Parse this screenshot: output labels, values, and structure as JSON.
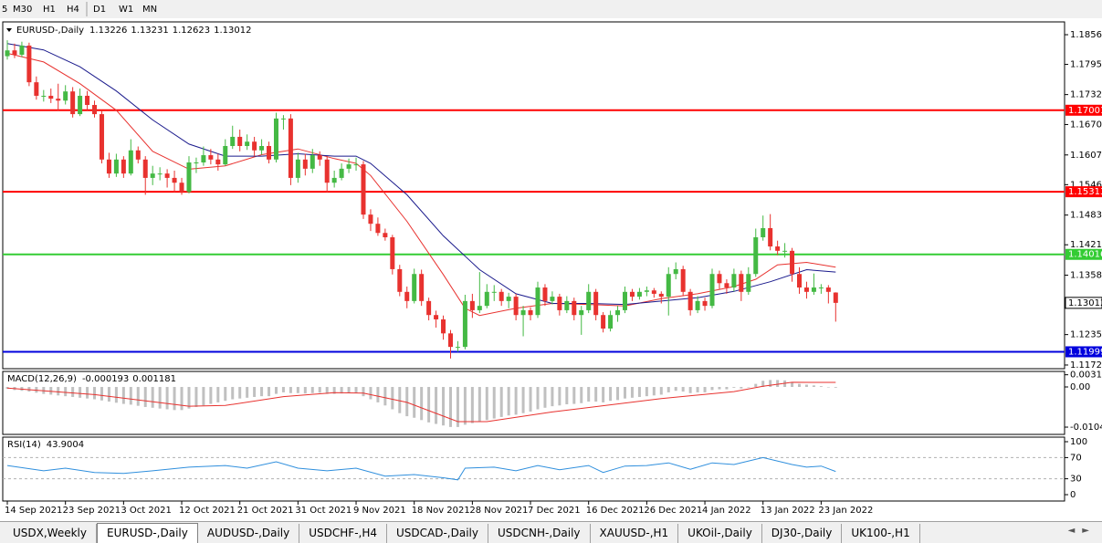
{
  "toolbar": {
    "timeframes": [
      "5",
      "M30",
      "H1",
      "H4",
      "D1",
      "W1",
      "MN"
    ]
  },
  "chart_data": [
    {
      "type": "candlestick",
      "symbol": "EURUSD-,Daily",
      "up_color": "#44b944",
      "down_color": "#e8322f",
      "xlim": [
        -0.63,
        145.5
      ],
      "ylim": [
        1.11649,
        1.1883
      ],
      "yticks": [
        1.18565,
        1.1795,
        1.17325,
        1.16705,
        1.16075,
        1.1546,
        1.1483,
        1.14215,
        1.13585,
        1.12355,
        1.11725
      ],
      "xticks": [
        {
          "value": 0,
          "label": "14 Sep 2021"
        },
        {
          "value": 8,
          "label": "23 Sep 2021"
        },
        {
          "value": 16,
          "label": "3 Oct 2021"
        },
        {
          "value": 24,
          "label": "12 Oct 2021"
        },
        {
          "value": 32,
          "label": "21 Oct 2021"
        },
        {
          "value": 40,
          "label": "31 Oct 2021"
        },
        {
          "value": 48,
          "label": "9 Nov 2021"
        },
        {
          "value": 56,
          "label": "18 Nov 2021"
        },
        {
          "value": 64,
          "label": "28 Nov 2021"
        },
        {
          "value": 72,
          "label": "7 Dec 2021"
        },
        {
          "value": 80,
          "label": "16 Dec 2021"
        },
        {
          "value": 88,
          "label": "26 Dec 2021"
        },
        {
          "value": 96,
          "label": "4 Jan 2022"
        },
        {
          "value": 104,
          "label": "13 Jan 2022"
        },
        {
          "value": 112,
          "label": "23 Jan 2022"
        }
      ],
      "levels": [
        {
          "value": 1.17001,
          "color": "#ff0000"
        },
        {
          "value": 1.15313,
          "color": "#ff0000"
        },
        {
          "value": 1.14016,
          "color": "#33cc33"
        },
        {
          "value": 1.11999,
          "color": "#0000dd"
        }
      ],
      "candles": [
        [
          1.1812,
          1.1845,
          1.1805,
          1.1824
        ],
        [
          1.1824,
          1.1838,
          1.1808,
          1.1815
        ],
        [
          1.1815,
          1.1842,
          1.181,
          1.1834
        ],
        [
          1.1834,
          1.184,
          1.175,
          1.1758
        ],
        [
          1.1758,
          1.177,
          1.1722,
          1.173
        ],
        [
          1.173,
          1.1742,
          1.1718,
          1.173
        ],
        [
          1.173,
          1.1745,
          1.1715,
          1.1724
        ],
        [
          1.1724,
          1.1755,
          1.17,
          1.172
        ],
        [
          1.172,
          1.1752,
          1.1712,
          1.1739
        ],
        [
          1.1739,
          1.1748,
          1.1685,
          1.1692
        ],
        [
          1.1692,
          1.1745,
          1.1688,
          1.173
        ],
        [
          1.173,
          1.174,
          1.17,
          1.1711
        ],
        [
          1.1711,
          1.172,
          1.1685,
          1.1692
        ],
        [
          1.1692,
          1.17,
          1.159,
          1.1598
        ],
        [
          1.1598,
          1.1612,
          1.156,
          1.1569
        ],
        [
          1.1569,
          1.161,
          1.1562,
          1.1598
        ],
        [
          1.1598,
          1.1605,
          1.156,
          1.1569
        ],
        [
          1.1569,
          1.164,
          1.1565,
          1.1617
        ],
        [
          1.1617,
          1.1625,
          1.159,
          1.1598
        ],
        [
          1.1598,
          1.1605,
          1.1525,
          1.156
        ],
        [
          1.156,
          1.1585,
          1.1545,
          1.1569
        ],
        [
          1.1569,
          1.1582,
          1.1555,
          1.1569
        ],
        [
          1.1569,
          1.1578,
          1.154,
          1.156
        ],
        [
          1.156,
          1.1575,
          1.153,
          1.155
        ],
        [
          1.155,
          1.156,
          1.1525,
          1.1531
        ],
        [
          1.1531,
          1.1605,
          1.1528,
          1.1592
        ],
        [
          1.1592,
          1.1602,
          1.157,
          1.1592
        ],
        [
          1.1592,
          1.1625,
          1.1585,
          1.1607
        ],
        [
          1.1607,
          1.162,
          1.1588,
          1.1598
        ],
        [
          1.1598,
          1.161,
          1.1575,
          1.1588
        ],
        [
          1.1588,
          1.164,
          1.1585,
          1.1626
        ],
        [
          1.1626,
          1.1668,
          1.162,
          1.1645
        ],
        [
          1.1645,
          1.166,
          1.1615,
          1.1626
        ],
        [
          1.1626,
          1.165,
          1.1618,
          1.1635
        ],
        [
          1.1635,
          1.1645,
          1.1605,
          1.1617
        ],
        [
          1.1617,
          1.164,
          1.1608,
          1.1626
        ],
        [
          1.1626,
          1.1635,
          1.159,
          1.1598
        ],
        [
          1.1598,
          1.1695,
          1.1592,
          1.1683
        ],
        [
          1.1683,
          1.169,
          1.166,
          1.1683
        ],
        [
          1.1683,
          1.1692,
          1.1545,
          1.156
        ],
        [
          1.156,
          1.1612,
          1.155,
          1.1598
        ],
        [
          1.1598,
          1.161,
          1.1565,
          1.1579
        ],
        [
          1.1579,
          1.162,
          1.157,
          1.1607
        ],
        [
          1.1607,
          1.1615,
          1.1585,
          1.1598
        ],
        [
          1.1598,
          1.1605,
          1.153,
          1.155
        ],
        [
          1.155,
          1.1575,
          1.154,
          1.156
        ],
        [
          1.156,
          1.159,
          1.1555,
          1.1579
        ],
        [
          1.1579,
          1.16,
          1.157,
          1.1588
        ],
        [
          1.1588,
          1.1602,
          1.1575,
          1.1588
        ],
        [
          1.1588,
          1.1595,
          1.1475,
          1.1484
        ],
        [
          1.1484,
          1.1495,
          1.145,
          1.1465
        ],
        [
          1.1465,
          1.1478,
          1.144,
          1.1446
        ],
        [
          1.1446,
          1.1455,
          1.143,
          1.1437
        ],
        [
          1.1437,
          1.1442,
          1.136,
          1.1371
        ],
        [
          1.1371,
          1.138,
          1.1315,
          1.1324
        ],
        [
          1.1324,
          1.1335,
          1.129,
          1.1305
        ],
        [
          1.1305,
          1.1372,
          1.13,
          1.1361
        ],
        [
          1.1361,
          1.137,
          1.1295,
          1.1305
        ],
        [
          1.1305,
          1.1312,
          1.1265,
          1.1276
        ],
        [
          1.1276,
          1.1285,
          1.125,
          1.1267
        ],
        [
          1.1267,
          1.1275,
          1.1225,
          1.1238
        ],
        [
          1.1238,
          1.1245,
          1.1186,
          1.121
        ],
        [
          1.121,
          1.1222,
          1.12,
          1.121
        ],
        [
          1.121,
          1.1318,
          1.1205,
          1.1305
        ],
        [
          1.1305,
          1.132,
          1.127,
          1.1286
        ],
        [
          1.1286,
          1.1365,
          1.128,
          1.1295
        ],
        [
          1.1295,
          1.134,
          1.129,
          1.1324
        ],
        [
          1.1324,
          1.1338,
          1.1305,
          1.1324
        ],
        [
          1.1324,
          1.133,
          1.1295,
          1.1305
        ],
        [
          1.1305,
          1.1322,
          1.129,
          1.1314
        ],
        [
          1.1314,
          1.132,
          1.1265,
          1.1276
        ],
        [
          1.1276,
          1.1295,
          1.1232,
          1.1286
        ],
        [
          1.1286,
          1.1292,
          1.1265,
          1.1276
        ],
        [
          1.1276,
          1.1345,
          1.127,
          1.1333
        ],
        [
          1.1333,
          1.134,
          1.1295,
          1.1305
        ],
        [
          1.1305,
          1.1325,
          1.1298,
          1.1314
        ],
        [
          1.1314,
          1.132,
          1.1275,
          1.1286
        ],
        [
          1.1286,
          1.1315,
          1.128,
          1.1305
        ],
        [
          1.1305,
          1.1312,
          1.1265,
          1.1276
        ],
        [
          1.1276,
          1.1295,
          1.1235,
          1.1286
        ],
        [
          1.1286,
          1.134,
          1.128,
          1.1324
        ],
        [
          1.1324,
          1.133,
          1.1265,
          1.1276
        ],
        [
          1.1276,
          1.1282,
          1.124,
          1.1248
        ],
        [
          1.1248,
          1.1285,
          1.1242,
          1.1276
        ],
        [
          1.1276,
          1.1295,
          1.1262,
          1.1286
        ],
        [
          1.1286,
          1.1335,
          1.128,
          1.1324
        ],
        [
          1.1324,
          1.133,
          1.1305,
          1.1314
        ],
        [
          1.1314,
          1.1332,
          1.1308,
          1.1324
        ],
        [
          1.1324,
          1.1335,
          1.1315,
          1.1327
        ],
        [
          1.1327,
          1.1332,
          1.1312,
          1.132
        ],
        [
          1.132,
          1.1325,
          1.13,
          1.1314
        ],
        [
          1.1314,
          1.1375,
          1.1275,
          1.1361
        ],
        [
          1.1361,
          1.1385,
          1.135,
          1.1371
        ],
        [
          1.1371,
          1.1378,
          1.1315,
          1.1324
        ],
        [
          1.1324,
          1.133,
          1.1275,
          1.1286
        ],
        [
          1.1286,
          1.1315,
          1.128,
          1.1305
        ],
        [
          1.1305,
          1.1312,
          1.1285,
          1.1295
        ],
        [
          1.1295,
          1.1372,
          1.129,
          1.1361
        ],
        [
          1.1361,
          1.1368,
          1.133,
          1.1342
        ],
        [
          1.1342,
          1.135,
          1.132,
          1.1333
        ],
        [
          1.1333,
          1.1372,
          1.1325,
          1.1361
        ],
        [
          1.1361,
          1.1368,
          1.1305,
          1.1324
        ],
        [
          1.1324,
          1.1375,
          1.1318,
          1.1361
        ],
        [
          1.1361,
          1.1455,
          1.1355,
          1.1437
        ],
        [
          1.1437,
          1.1482,
          1.143,
          1.1456
        ],
        [
          1.1456,
          1.1485,
          1.141,
          1.1418
        ],
        [
          1.1418,
          1.143,
          1.14,
          1.1409
        ],
        [
          1.1409,
          1.1425,
          1.1395,
          1.1409
        ],
        [
          1.1409,
          1.1415,
          1.1345,
          1.1361
        ],
        [
          1.1361,
          1.1375,
          1.132,
          1.1333
        ],
        [
          1.1333,
          1.1345,
          1.131,
          1.1324
        ],
        [
          1.1324,
          1.1362,
          1.1318,
          1.1333
        ],
        [
          1.1333,
          1.134,
          1.132,
          1.1333
        ],
        [
          1.1333,
          1.1338,
          1.13,
          1.1324
        ],
        [
          1.13226,
          1.13231,
          1.12623,
          1.13012
        ]
      ],
      "series": [
        {
          "color": "#e8322f",
          "x": [
            0,
            5,
            10,
            15,
            20,
            25,
            30,
            35,
            40,
            45,
            48,
            50,
            55,
            60,
            63,
            65,
            70,
            75,
            80,
            85,
            90,
            95,
            100,
            103,
            106,
            110,
            114
          ],
          "values": [
            1.1818,
            1.18,
            1.1755,
            1.17,
            1.1615,
            1.1578,
            1.1585,
            1.1608,
            1.162,
            1.16,
            1.159,
            1.1565,
            1.147,
            1.136,
            1.129,
            1.1275,
            1.129,
            1.13,
            1.1298,
            1.1295,
            1.131,
            1.132,
            1.1335,
            1.135,
            1.138,
            1.1385,
            1.1375
          ]
        },
        {
          "color": "#1a1a8c",
          "x": [
            0,
            5,
            10,
            15,
            20,
            25,
            30,
            35,
            40,
            45,
            48,
            50,
            55,
            60,
            65,
            70,
            75,
            80,
            85,
            90,
            95,
            100,
            105,
            110,
            114
          ],
          "values": [
            1.1838,
            1.1825,
            1.179,
            1.174,
            1.168,
            1.163,
            1.1605,
            1.1605,
            1.161,
            1.1605,
            1.1605,
            1.159,
            1.1525,
            1.144,
            1.137,
            1.132,
            1.13,
            1.13,
            1.1298,
            1.1305,
            1.1312,
            1.1325,
            1.1345,
            1.137,
            1.1365
          ]
        }
      ]
    },
    {
      "type": "macd",
      "label": "MACD(12,26,9)",
      "color": "#c0c0c0",
      "ylim": [
        -0.01232,
        0.00403
      ],
      "yticks": [
        0.003165,
        {
          "value": 0,
          "label": "0.00"
        },
        -0.01043
      ],
      "values": [
        -0.0005,
        -0.0008,
        -0.001,
        -0.0012,
        -0.0015,
        -0.0018,
        -0.002,
        -0.0022,
        -0.0024,
        -0.0026,
        -0.0028,
        -0.003,
        -0.0032,
        -0.0035,
        -0.0038,
        -0.0041,
        -0.0044,
        -0.0046,
        -0.0049,
        -0.0052,
        -0.0054,
        -0.0056,
        -0.0058,
        -0.006,
        -0.006,
        -0.0056,
        -0.0052,
        -0.0048,
        -0.0044,
        -0.004,
        -0.0036,
        -0.0032,
        -0.003,
        -0.0028,
        -0.0026,
        -0.0024,
        -0.0024,
        -0.0018,
        -0.0014,
        -0.0016,
        -0.0016,
        -0.0017,
        -0.0016,
        -0.0015,
        -0.0018,
        -0.0018,
        -0.0017,
        -0.0016,
        -0.0016,
        -0.0024,
        -0.0032,
        -0.004,
        -0.0048,
        -0.0058,
        -0.0068,
        -0.0076,
        -0.008,
        -0.0086,
        -0.0092,
        -0.0096,
        -0.01,
        -0.0104,
        -0.0104,
        -0.0098,
        -0.0094,
        -0.009,
        -0.0086,
        -0.0082,
        -0.0078,
        -0.0074,
        -0.0072,
        -0.0068,
        -0.0064,
        -0.0058,
        -0.0054,
        -0.005,
        -0.0048,
        -0.0045,
        -0.0044,
        -0.0042,
        -0.0038,
        -0.0038,
        -0.004,
        -0.0036,
        -0.0034,
        -0.003,
        -0.0028,
        -0.0026,
        -0.0024,
        -0.0022,
        -0.002,
        -0.0014,
        -0.001,
        -0.0012,
        -0.0016,
        -0.0014,
        -0.0014,
        -0.0008,
        -0.0006,
        -0.0006,
        -0.0002,
        -0.0004,
        0,
        0.0008,
        0.0016,
        0.0018,
        0.0018,
        0.0017,
        0.0012,
        0.0008,
        0.0006,
        0.0004,
        0.0002,
        0,
        -0.000193
      ],
      "series": [
        {
          "color": "#e8322f",
          "x": [
            0,
            12,
            25,
            30,
            38,
            45,
            49,
            55,
            62,
            66,
            75,
            90,
            100,
            104,
            108,
            114
          ],
          "values": [
            -0.0003,
            -0.002,
            -0.005,
            -0.0048,
            -0.0025,
            -0.0015,
            -0.0016,
            -0.004,
            -0.009,
            -0.009,
            -0.0065,
            -0.003,
            -0.0012,
            0.0002,
            0.0012,
            0.001181
          ]
        }
      ]
    },
    {
      "type": "line",
      "label": "RSI(14)",
      "ylim": [
        -12,
        108.6
      ],
      "yticks": [
        100,
        70,
        30,
        0
      ],
      "levels": [
        70,
        30
      ],
      "series": [
        {
          "color": "#2f8fdd",
          "x": [
            0,
            5,
            8,
            12,
            16,
            20,
            25,
            30,
            33,
            37,
            40,
            44,
            48,
            52,
            56,
            60,
            62,
            63,
            67,
            70,
            73,
            76,
            80,
            82,
            85,
            88,
            91,
            94,
            97,
            100,
            104,
            108,
            110,
            112,
            114
          ],
          "values": [
            55,
            45,
            50,
            42,
            40,
            45,
            52,
            55,
            50,
            62,
            50,
            45,
            50,
            35,
            38,
            32,
            28,
            50,
            52,
            45,
            55,
            47,
            55,
            42,
            54,
            55,
            60,
            48,
            60,
            57,
            70,
            57,
            52,
            54,
            43.9004
          ]
        }
      ]
    }
  ],
  "tabs": [
    "USDX,Weekly",
    "EURUSD-,Daily",
    "AUDUSD-,Daily",
    "USDCHF-,H4",
    "USDCAD-,Daily",
    "USDCNH-,Daily",
    "XAUUSD-,H1",
    "UKOil-,Daily",
    "DJ30-,Daily",
    "UK100-,H1"
  ],
  "active_tab": 1
}
